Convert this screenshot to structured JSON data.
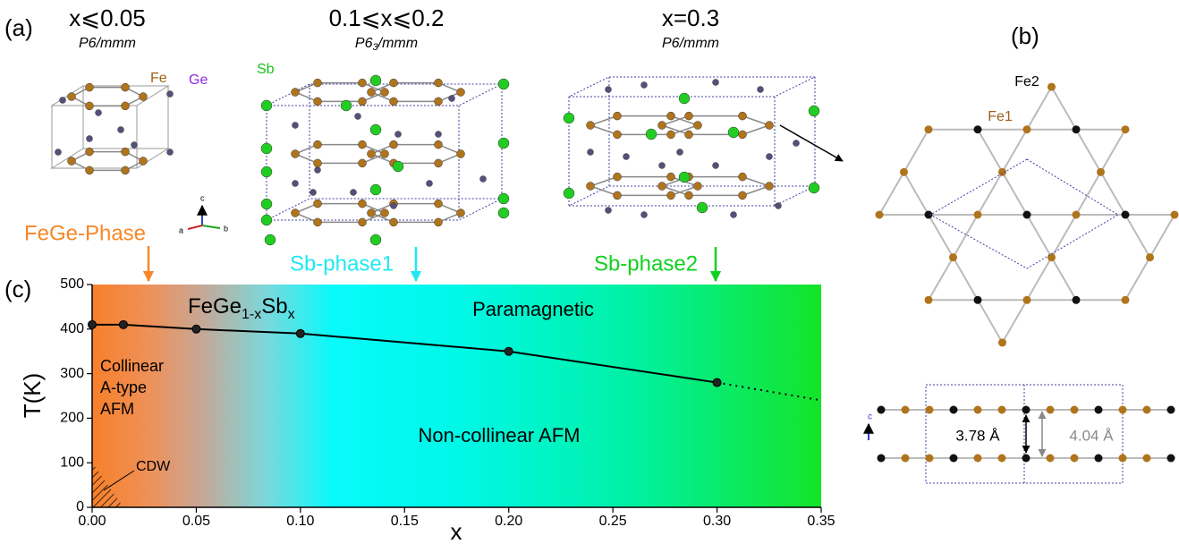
{
  "figure_labels": [
    "(a)",
    "(b)",
    "(c)"
  ],
  "panel_a": {
    "structures": [
      {
        "composition": "x⩽0.05",
        "space_group": {
          "main": "P6/mmm"
        }
      },
      {
        "composition": "0.1⩽x⩽0.2",
        "space_group": {
          "main": "P6",
          "sub": "3",
          "rest": "/mmm"
        }
      },
      {
        "composition": "x=0.3",
        "space_group": {
          "main": "P6/mmm"
        }
      }
    ],
    "atoms": {
      "fe": "Fe",
      "ge": "Ge",
      "sb": "Sb"
    },
    "axes": {
      "c": "c",
      "a": "a",
      "b": "b"
    }
  },
  "phases": [
    "FeGe-Phase",
    "Sb-phase1",
    "Sb-phase2"
  ],
  "panel_b": {
    "fe2": "Fe2",
    "fe1": "Fe1",
    "c_axis": "c",
    "d1": "3.78 Å",
    "d2": "4.04 Å"
  },
  "chart_data": {
    "type": "line",
    "x_label": "x",
    "y_label": "T(K)",
    "x": [
      0,
      0.015,
      0.05,
      0.1,
      0.2,
      0.3
    ],
    "values": [
      410,
      410,
      400,
      390,
      350,
      280
    ],
    "color": "#000000",
    "extrapolation": {
      "x": [
        0.3,
        0.35
      ],
      "values": [
        280,
        240
      ]
    },
    "xlim": [
      0,
      0.35
    ],
    "ylim": [
      0,
      500
    ],
    "xticks": [
      {
        "value": 0,
        "label": "0.00"
      },
      0.05,
      {
        "value": 0.1,
        "label": "0.10"
      },
      0.15,
      {
        "value": 0.2,
        "label": "0.20"
      },
      0.25,
      {
        "value": 0.3,
        "label": "0.30"
      },
      0.35
    ],
    "yticks": [
      0,
      100,
      200,
      300,
      400,
      500
    ],
    "annotations": {
      "formula": {
        "a": "FeGe",
        "b": "1-x",
        "c": "Sb",
        "d": "x"
      },
      "paramagnetic": "Paramagnetic",
      "collinear": [
        "Collinear",
        "A-type",
        "AFM"
      ],
      "noncollinear": "Non-collinear AFM",
      "cdw": "CDW"
    }
  }
}
